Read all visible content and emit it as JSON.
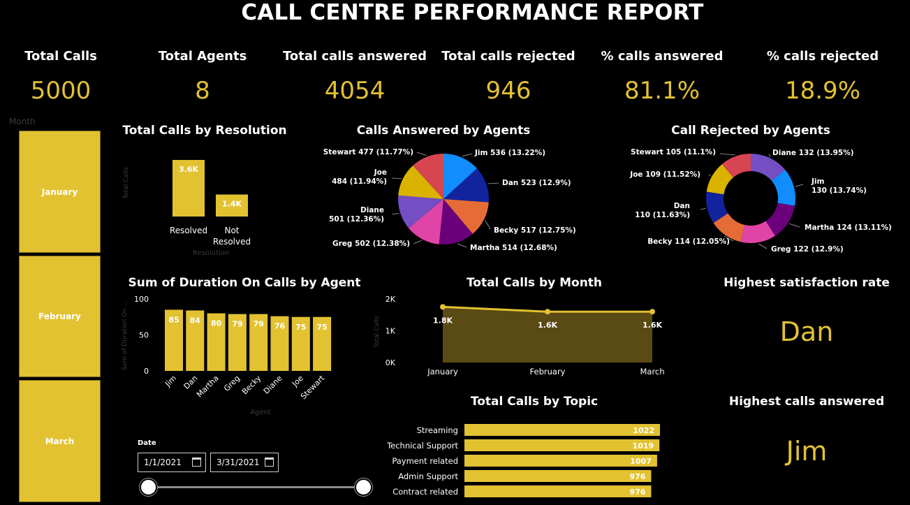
{
  "title": "CALL CENTRE PERFORMANCE REPORT",
  "kpis": [
    {
      "label": "Total Calls",
      "value": "5000"
    },
    {
      "label": "Total Agents",
      "value": "8"
    },
    {
      "label": "Total calls answered",
      "value": "4054"
    },
    {
      "label": "Total calls rejected",
      "value": "946"
    },
    {
      "label": "% calls answered",
      "value": "81.1%"
    },
    {
      "label": "% calls rejected",
      "value": "18.9%"
    }
  ],
  "month_slicer": {
    "label": "Month",
    "items": [
      "January",
      "February",
      "March"
    ]
  },
  "date_slicer": {
    "label": "Date",
    "start": "1/1/2021",
    "end": "3/31/2021"
  },
  "highlights": {
    "satisfaction_title": "Highest satisfaction rate",
    "satisfaction_value": "Dan",
    "answered_title": "Highest calls answered",
    "answered_value": "Jim"
  },
  "colors": {
    "accent": "#e3c232",
    "background": "#000000",
    "area_fill": "#5a4a14"
  },
  "chart_data": [
    {
      "id": "resolution",
      "type": "bar",
      "title": "Total Calls by Resolution",
      "xlabel": "Resolution",
      "ylabel": "Total Calls",
      "categories": [
        "Resolved",
        "Not Resolved"
      ],
      "values": [
        3600,
        1400
      ],
      "data_labels": [
        "3.6K",
        "1.4K"
      ],
      "ylim": [
        0,
        4000
      ]
    },
    {
      "id": "answered_by_agent",
      "type": "pie",
      "title": "Calls Answered by Agents",
      "slices": [
        {
          "label": "Jim",
          "value": 536,
          "pct": "13.22%",
          "color": "#118dff"
        },
        {
          "label": "Dan",
          "value": 523,
          "pct": "12.9%",
          "color": "#12239e"
        },
        {
          "label": "Becky",
          "value": 517,
          "pct": "12.75%",
          "color": "#e66c37"
        },
        {
          "label": "Martha",
          "value": 514,
          "pct": "12.68%",
          "color": "#6b007b"
        },
        {
          "label": "Greg",
          "value": 502,
          "pct": "12.38%",
          "color": "#e044a7"
        },
        {
          "label": "Diane",
          "value": 501,
          "pct": "12.36%",
          "color": "#744ec2"
        },
        {
          "label": "Joe",
          "value": 484,
          "pct": "11.94%",
          "color": "#d9b300"
        },
        {
          "label": "Stewart",
          "value": 477,
          "pct": "11.77%",
          "color": "#d64550"
        }
      ]
    },
    {
      "id": "rejected_by_agent",
      "type": "pie",
      "title": "Call Rejected by Agents",
      "donut": true,
      "slices": [
        {
          "label": "Diane",
          "value": 132,
          "pct": "13.95%",
          "color": "#744ec2"
        },
        {
          "label": "Jim",
          "value": 130,
          "pct": "13.74%",
          "color": "#118dff"
        },
        {
          "label": "Martha",
          "value": 124,
          "pct": "13.11%",
          "color": "#6b007b"
        },
        {
          "label": "Greg",
          "value": 122,
          "pct": "12.9%",
          "color": "#e044a7"
        },
        {
          "label": "Becky",
          "value": 114,
          "pct": "12.05%",
          "color": "#e66c37"
        },
        {
          "label": "Dan",
          "value": 110,
          "pct": "11.63%",
          "color": "#12239e"
        },
        {
          "label": "Joe",
          "value": 109,
          "pct": "11.52%",
          "color": "#d9b300"
        },
        {
          "label": "Stewart",
          "value": 105,
          "pct": "11.1%",
          "color": "#d64550"
        }
      ]
    },
    {
      "id": "duration_by_agent",
      "type": "bar",
      "title": "Sum of Duration On Calls by Agent",
      "xlabel": "Agent",
      "ylabel": "Sum of Duration On ...",
      "categories": [
        "Jim",
        "Dan",
        "Martha",
        "Greg",
        "Becky",
        "Diane",
        "Joe",
        "Stewart"
      ],
      "values": [
        85,
        84,
        80,
        79,
        79,
        76,
        75,
        75
      ],
      "ylim": [
        0,
        100
      ],
      "yticks": [
        "0",
        "50",
        "100"
      ]
    },
    {
      "id": "calls_by_month",
      "type": "area",
      "title": "Total Calls by Month",
      "ylabel": "Total Calls",
      "categories": [
        "January",
        "February",
        "March"
      ],
      "values": [
        1750,
        1600,
        1600
      ],
      "data_labels": [
        "1.8K",
        "1.6K",
        "1.6K"
      ],
      "ylim": [
        0,
        2000
      ],
      "yticks": [
        "0K",
        "1K",
        "2K"
      ]
    },
    {
      "id": "calls_by_topic",
      "type": "bar",
      "orientation": "horizontal",
      "title": "Total Calls by Topic",
      "categories": [
        "Streaming",
        "Technical Support",
        "Payment related",
        "Admin Support",
        "Contract related"
      ],
      "values": [
        1022,
        1019,
        1007,
        976,
        976
      ],
      "xlim": [
        0,
        1022
      ]
    }
  ]
}
